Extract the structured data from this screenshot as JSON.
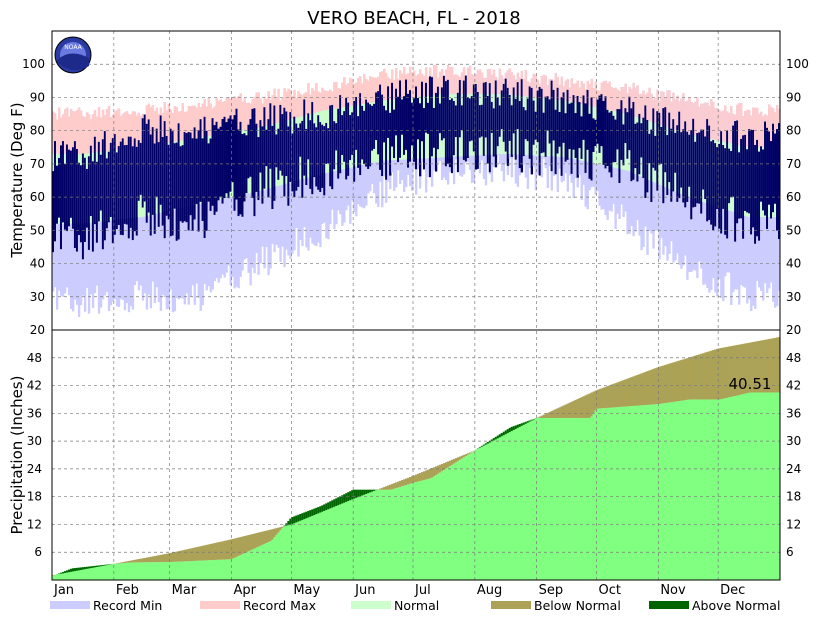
{
  "chart_data": [
    {
      "type": "bar",
      "name": "temperature",
      "title": "VERO BEACH, FL - 2018",
      "ylabel": "Temperature (Deg F)",
      "ylim": [
        20,
        110
      ],
      "yticks": [
        20,
        30,
        40,
        50,
        60,
        70,
        80,
        90,
        100
      ],
      "x_months": [
        "Jan",
        "Feb",
        "Mar",
        "Apr",
        "May",
        "Jun",
        "Jul",
        "Aug",
        "Sep",
        "Oct",
        "Nov",
        "Dec"
      ],
      "monthly": {
        "record_max": [
          85,
          86,
          88,
          90,
          93,
          97,
          98,
          97,
          95,
          93,
          89,
          86
        ],
        "record_min": [
          28,
          30,
          30,
          40,
          50,
          62,
          68,
          68,
          66,
          52,
          38,
          30
        ],
        "normal_high": [
          73,
          75,
          78,
          81,
          86,
          89,
          91,
          91,
          89,
          85,
          79,
          75
        ],
        "normal_low": [
          52,
          54,
          58,
          62,
          67,
          71,
          72,
          73,
          72,
          68,
          60,
          54
        ],
        "observed_high": [
          72,
          80,
          80,
          83,
          85,
          90,
          92,
          91,
          90,
          86,
          80,
          78
        ],
        "observed_low": [
          47,
          54,
          53,
          62,
          67,
          72,
          73,
          74,
          73,
          70,
          58,
          52
        ]
      },
      "grid": true,
      "legend": "bottom"
    },
    {
      "type": "area",
      "name": "precipitation",
      "ylabel": "Precipitation (Inches)",
      "ylim": [
        0,
        54
      ],
      "yticks": [
        6,
        12,
        18,
        24,
        30,
        36,
        42,
        48
      ],
      "x_months": [
        "Jan",
        "Feb",
        "Mar",
        "Apr",
        "May",
        "Jun",
        "Jul",
        "Aug",
        "Sep",
        "Oct",
        "Nov",
        "Dec"
      ],
      "series": [
        {
          "name": "normal_cumulative",
          "x_day": [
            0,
            31,
            59,
            90,
            120,
            151,
            181,
            212,
            243,
            273,
            304,
            334,
            365
          ],
          "values": [
            1.0,
            3.5,
            5.8,
            8.8,
            12.0,
            17.5,
            22.5,
            28.0,
            35.0,
            41.0,
            46.0,
            50.0,
            52.5
          ]
        },
        {
          "name": "observed_cumulative",
          "x_day": [
            0,
            10,
            31,
            40,
            60,
            90,
            110,
            120,
            135,
            151,
            160,
            170,
            181,
            190,
            212,
            230,
            243,
            270,
            273,
            304,
            320,
            335,
            350,
            365
          ],
          "values": [
            0.8,
            2.5,
            3.5,
            3.8,
            3.9,
            4.5,
            8.5,
            13.5,
            16.0,
            19.5,
            19.5,
            19.5,
            21.0,
            22.0,
            28.0,
            33.0,
            35.0,
            35.0,
            37.0,
            38.0,
            39.0,
            39.0,
            40.5,
            40.51
          ]
        }
      ],
      "annotation": "40.51",
      "grid": true
    }
  ],
  "legend": [
    {
      "label": "Record Min",
      "color": "#ccccff"
    },
    {
      "label": "Record Max",
      "color": "#ffcccc"
    },
    {
      "label": "Normal",
      "color": "#ccffcc"
    },
    {
      "label": "Below Normal",
      "color": "#aba257"
    },
    {
      "label": "Above Normal",
      "color": "#006400"
    }
  ],
  "colors": {
    "observed_temp": "#000066",
    "precip_observed": "#80ff80",
    "precip_below": "#aba257",
    "precip_above": "#006400"
  },
  "logo_text": "NOAA"
}
